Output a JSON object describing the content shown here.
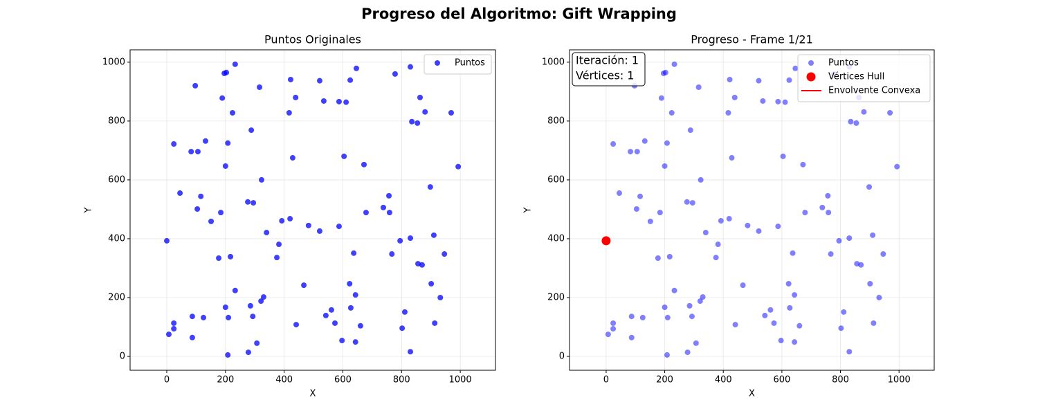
{
  "title": "Progreso del Algoritmo: Gift Wrapping",
  "chart_data": [
    {
      "type": "scatter",
      "title": "Puntos Originales",
      "xlabel": "X",
      "ylabel": "Y",
      "xlim": [
        -125,
        1120
      ],
      "ylim": [
        -47,
        1042
      ],
      "xticks": [
        0,
        200,
        400,
        600,
        800,
        1000
      ],
      "yticks": [
        0,
        200,
        400,
        600,
        800,
        1000
      ],
      "grid": true,
      "legend": "upper right",
      "series": [
        {
          "name": "Puntos",
          "color": "#0000ff",
          "alpha": 0.75,
          "x": [
            0,
            7,
            24,
            24,
            24,
            45,
            87,
            87,
            83,
            97,
            106,
            104,
            116,
            125,
            132,
            151,
            177,
            184,
            189,
            196,
            203,
            200,
            200,
            208,
            210,
            208,
            217,
            224,
            233,
            233,
            278,
            276,
            295,
            288,
            285,
            293,
            307,
            316,
            321,
            323,
            330,
            340,
            375,
            382,
            392,
            417,
            420,
            422,
            429,
            439,
            441,
            467,
            483,
            521,
            521,
            535,
            542,
            561,
            573,
            587,
            587,
            597,
            611,
            604,
            623,
            625,
            627,
            637,
            643,
            643,
            646,
            660,
            672,
            679,
            738,
            757,
            759,
            767,
            778,
            795,
            802,
            811,
            830,
            830,
            830,
            835,
            854,
            856,
            863,
            870,
            880,
            898,
            901,
            910,
            913,
            932,
            946,
            969,
            993
          ],
          "y": [
            393,
            75,
            113,
            94,
            722,
            555,
            64,
            136,
            696,
            920,
            696,
            501,
            544,
            132,
            732,
            459,
            334,
            489,
            878,
            962,
            965,
            647,
            167,
            725,
            132,
            5,
            339,
            828,
            993,
            224,
            14,
            525,
            522,
            769,
            172,
            136,
            45,
            915,
            188,
            600,
            202,
            421,
            336,
            381,
            461,
            828,
            468,
            941,
            675,
            880,
            108,
            242,
            445,
            426,
            937,
            868,
            139,
            158,
            113,
            442,
            866,
            54,
            864,
            680,
            247,
            939,
            165,
            351,
            209,
            49,
            979,
            104,
            652,
            489,
            506,
            546,
            489,
            348,
            960,
            393,
            96,
            151,
            984,
            16,
            402,
            798,
            793,
            315,
            880,
            311,
            831,
            576,
            247,
            412,
            113,
            200,
            348,
            828,
            645
          ]
        }
      ]
    },
    {
      "type": "scatter",
      "title": "Progreso - Frame 1/21",
      "xlabel": "X",
      "ylabel": "Y",
      "xlim": [
        -125,
        1120
      ],
      "ylim": [
        -47,
        1042
      ],
      "xticks": [
        0,
        200,
        400,
        600,
        800,
        1000
      ],
      "yticks": [
        0,
        200,
        400,
        600,
        800,
        1000
      ],
      "grid": true,
      "legend": "upper right",
      "annotation": [
        "Iteración: 1",
        "Vértices: 1"
      ],
      "series": [
        {
          "name": "Puntos",
          "color": "#0000ff",
          "alpha": 0.5,
          "x": [
            0,
            7,
            24,
            24,
            24,
            45,
            87,
            87,
            83,
            97,
            106,
            104,
            116,
            125,
            132,
            151,
            177,
            184,
            189,
            196,
            203,
            200,
            200,
            208,
            210,
            208,
            217,
            224,
            233,
            233,
            278,
            276,
            295,
            288,
            285,
            293,
            307,
            316,
            321,
            323,
            330,
            340,
            375,
            382,
            392,
            417,
            420,
            422,
            429,
            439,
            441,
            467,
            483,
            521,
            521,
            535,
            542,
            561,
            573,
            587,
            587,
            597,
            611,
            604,
            623,
            625,
            627,
            637,
            643,
            643,
            646,
            660,
            672,
            679,
            738,
            757,
            759,
            767,
            778,
            795,
            802,
            811,
            830,
            830,
            830,
            835,
            854,
            856,
            863,
            870,
            880,
            898,
            901,
            910,
            913,
            932,
            946,
            969,
            993
          ],
          "y": [
            393,
            75,
            113,
            94,
            722,
            555,
            64,
            136,
            696,
            920,
            696,
            501,
            544,
            132,
            732,
            459,
            334,
            489,
            878,
            962,
            965,
            647,
            167,
            725,
            132,
            5,
            339,
            828,
            993,
            224,
            14,
            525,
            522,
            769,
            172,
            136,
            45,
            915,
            188,
            600,
            202,
            421,
            336,
            381,
            461,
            828,
            468,
            941,
            675,
            880,
            108,
            242,
            445,
            426,
            937,
            868,
            139,
            158,
            113,
            442,
            866,
            54,
            864,
            680,
            247,
            939,
            165,
            351,
            209,
            49,
            979,
            104,
            652,
            489,
            506,
            546,
            489,
            348,
            960,
            393,
            96,
            151,
            984,
            16,
            402,
            798,
            793,
            315,
            880,
            311,
            831,
            576,
            247,
            412,
            113,
            200,
            348,
            828,
            645
          ]
        },
        {
          "name": "Vértices Hull",
          "color": "#ff0000",
          "alpha": 1,
          "x": [
            0
          ],
          "y": [
            393
          ]
        },
        {
          "name": "Envolvente Convexa",
          "type": "line",
          "color": "#ff0000",
          "alpha": 1,
          "x": [
            0
          ],
          "y": [
            393
          ]
        }
      ]
    }
  ]
}
